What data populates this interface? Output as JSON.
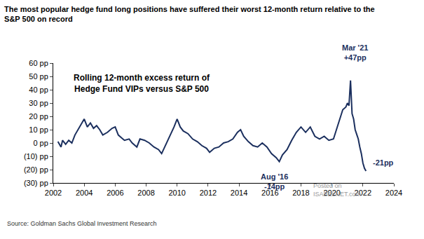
{
  "chart_data": {
    "type": "line",
    "title": [
      "The most popular hedge fund long positions have suffered their worst 12-month return relative to the",
      "S&P 500 on record"
    ],
    "subtitle": [
      "Rolling 12-month excess return of",
      "Hedge Fund VIPs versus S&P 500"
    ],
    "source": "Source: Goldman Sachs Global Investment Research",
    "watermark": [
      "Posted on",
      "ISABELNET.com"
    ],
    "annotations": [
      [
        "Mar '21",
        "+47pp"
      ],
      [
        "Aug '16",
        "-14pp"
      ],
      [
        "-21pp"
      ]
    ],
    "x": [
      2002.3,
      2002.5,
      2002.6,
      2002.8,
      2003.0,
      2003.2,
      2003.4,
      2003.6,
      2003.8,
      2004.0,
      2004.2,
      2004.4,
      2004.6,
      2004.8,
      2005.0,
      2005.2,
      2005.5,
      2005.8,
      2006.0,
      2006.2,
      2006.4,
      2006.6,
      2006.9,
      2007.1,
      2007.4,
      2007.6,
      2007.9,
      2008.2,
      2008.5,
      2008.8,
      2009.0,
      2009.2,
      2009.5,
      2009.8,
      2010.0,
      2010.2,
      2010.4,
      2010.7,
      2011.0,
      2011.3,
      2011.6,
      2011.9,
      2012.1,
      2012.4,
      2012.7,
      2013.0,
      2013.3,
      2013.6,
      2013.9,
      2014.1,
      2014.3,
      2014.6,
      2014.9,
      2015.2,
      2015.5,
      2015.8,
      2016.1,
      2016.4,
      2016.6,
      2016.8,
      2017.1,
      2017.4,
      2017.7,
      2018.0,
      2018.3,
      2018.6,
      2018.9,
      2019.2,
      2019.5,
      2019.8,
      2020.1,
      2020.3,
      2020.5,
      2020.7,
      2020.9,
      2021.0,
      2021.1,
      2021.2,
      2021.3,
      2021.4,
      2021.5,
      2021.6,
      2021.7,
      2021.8,
      2021.9,
      2022.0,
      2022.1,
      2022.2
    ],
    "series": [
      {
        "name": "Hedge Fund VIPs versus S&P 500",
        "color": "#1b2f5e",
        "values": [
          1,
          -3,
          2,
          -1,
          2,
          0,
          6,
          10,
          14,
          18,
          12,
          15,
          11,
          13,
          10,
          6,
          8,
          11,
          12,
          6,
          4,
          2,
          3,
          0,
          -3,
          3,
          2,
          0,
          -3,
          -5,
          -8,
          -3,
          5,
          12,
          18,
          12,
          9,
          7,
          3,
          1,
          -2,
          -4,
          -7,
          -4,
          -3,
          0,
          1,
          3,
          8,
          10,
          5,
          1,
          -2,
          -3,
          0,
          -3,
          -8,
          -11,
          -14,
          -9,
          -5,
          2,
          8,
          12,
          8,
          12,
          5,
          3,
          5,
          2,
          3,
          10,
          18,
          25,
          27,
          30,
          28,
          47,
          22,
          18,
          10,
          6,
          3,
          -3,
          -8,
          -15,
          -19,
          -21
        ]
      }
    ],
    "xlim": [
      2002,
      2024
    ],
    "xticks": [
      2002,
      2004,
      2006,
      2008,
      2010,
      2012,
      2014,
      2016,
      2018,
      2020,
      2022,
      2024
    ],
    "ylim": [
      -30,
      60
    ],
    "yticks": [
      {
        "value": -30,
        "label": "(30) pp"
      },
      {
        "value": -20,
        "label": "(20) pp"
      },
      {
        "value": -10,
        "label": "(10) pp"
      },
      {
        "value": 0,
        "label": "0 pp"
      },
      {
        "value": 10,
        "label": "10 pp"
      },
      {
        "value": 20,
        "label": "20 pp"
      },
      {
        "value": 30,
        "label": "30 pp"
      },
      {
        "value": 40,
        "label": "40 pp"
      },
      {
        "value": 50,
        "label": "50 pp"
      },
      {
        "value": 60,
        "label": "60 pp"
      }
    ],
    "grid": false
  }
}
